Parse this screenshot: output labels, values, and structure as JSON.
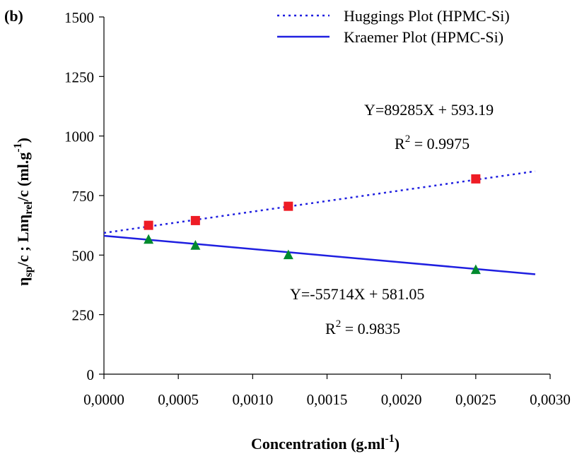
{
  "chart_data": {
    "type": "scatter",
    "panel_label": "(b)",
    "xlabel": {
      "main": "Concentration (g.ml",
      "sup": "-1",
      "close": ")"
    },
    "ylabel": {
      "p1": "η",
      "p1_sub": "sp",
      "p2": "/c ; Lnη",
      "p2_sub": "rel",
      "p3": "/c (ml.g",
      "p3_sup": "-1",
      "p4": ")"
    },
    "xlim": [
      0,
      0.003
    ],
    "ylim": [
      0,
      1500
    ],
    "x_ticks": [
      0,
      0.0005,
      0.001,
      0.0015,
      0.002,
      0.0025,
      0.003
    ],
    "x_tick_labels": [
      "0,0000",
      "0,0005",
      "0,0010",
      "0,0015",
      "0,0020",
      "0,0025",
      "0,0030"
    ],
    "y_ticks": [
      0,
      250,
      500,
      750,
      1000,
      1250,
      1500
    ],
    "y_tick_labels": [
      "0",
      "250",
      "500",
      "750",
      "1000",
      "1250",
      "1500"
    ],
    "grid": false,
    "legend_position": "top-right",
    "series": [
      {
        "name": "Huggings Plot (HPMC-Si)",
        "marker": "square",
        "marker_color": "#ee1c25",
        "line_color": "#1f1fe0",
        "line_style": "dotted",
        "x": [
          0.0003,
          0.000615,
          0.00124,
          0.0025
        ],
        "y": [
          625,
          645,
          705,
          820
        ],
        "fit": {
          "slope": 89285,
          "intercept": 593.19,
          "x_range": [
            0,
            0.0029
          ]
        },
        "equation": "Y=89285X + 593.19",
        "r2_prefix": "R",
        "r2_sup": "2",
        "r2_value": " = 0.9975"
      },
      {
        "name": "Kraemer Plot (HPMC-Si)",
        "marker": "triangle",
        "marker_color": "#008a2e",
        "line_color": "#1f1fe0",
        "line_style": "solid",
        "x": [
          0.0003,
          0.000615,
          0.00124,
          0.0025
        ],
        "y": [
          565,
          540,
          500,
          438
        ],
        "fit": {
          "slope": -55714,
          "intercept": 581.05,
          "x_range": [
            0,
            0.0029
          ]
        },
        "equation": "Y=-55714X + 581.05",
        "r2_prefix": "R",
        "r2_sup": "2",
        "r2_value": " = 0.9835"
      }
    ]
  }
}
